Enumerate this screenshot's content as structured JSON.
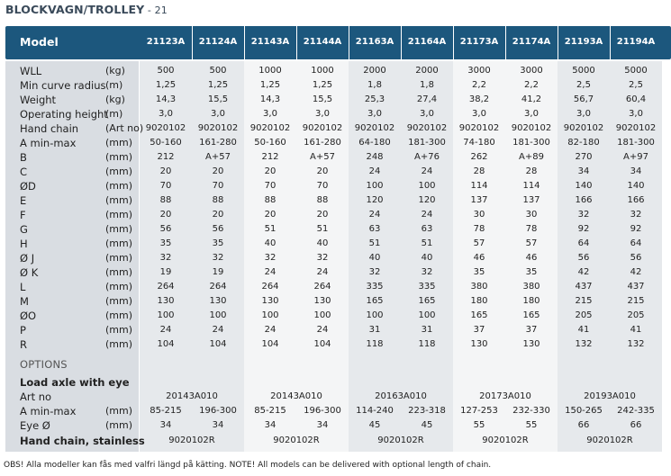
{
  "title": "BLOCKVAGN/TROLLEY",
  "page": "21",
  "header": {
    "model_label": "Model",
    "models": [
      "21123A",
      "21124A",
      "21143A",
      "21144A",
      "21163A",
      "21164A",
      "21173A",
      "21174A",
      "21193A",
      "21194A"
    ]
  },
  "rows": [
    {
      "label": "WLL",
      "unit": "(kg)",
      "values": [
        "500",
        "500",
        "1000",
        "1000",
        "2000",
        "2000",
        "3000",
        "3000",
        "5000",
        "5000"
      ]
    },
    {
      "label": "Min curve radius",
      "unit": "(m)",
      "values": [
        "1,25",
        "1,25",
        "1,25",
        "1,25",
        "1,8",
        "1,8",
        "2,2",
        "2,2",
        "2,5",
        "2,5"
      ]
    },
    {
      "label": "Weight",
      "unit": "(kg)",
      "values": [
        "14,3",
        "15,5",
        "14,3",
        "15,5",
        "25,3",
        "27,4",
        "38,2",
        "41,2",
        "56,7",
        "60,4"
      ]
    },
    {
      "label": "Operating height",
      "unit": "(m)",
      "values": [
        "3,0",
        "3,0",
        "3,0",
        "3,0",
        "3,0",
        "3,0",
        "3,0",
        "3,0",
        "3,0",
        "3,0"
      ]
    },
    {
      "label": "Hand chain",
      "unit": "(Art no)",
      "values": [
        "9020102",
        "9020102",
        "9020102",
        "9020102",
        "9020102",
        "9020102",
        "9020102",
        "9020102",
        "9020102",
        "9020102"
      ]
    },
    {
      "label": "A min-max",
      "unit": "(mm)",
      "values": [
        "50-160",
        "161-280",
        "50-160",
        "161-280",
        "64-180",
        "181-300",
        "74-180",
        "181-300",
        "82-180",
        "181-300"
      ]
    },
    {
      "label": "B",
      "unit": "(mm)",
      "values": [
        "212",
        "A+57",
        "212",
        "A+57",
        "248",
        "A+76",
        "262",
        "A+89",
        "270",
        "A+97"
      ]
    },
    {
      "label": "C",
      "unit": "(mm)",
      "values": [
        "20",
        "20",
        "20",
        "20",
        "24",
        "24",
        "28",
        "28",
        "34",
        "34"
      ]
    },
    {
      "label": "ØD",
      "unit": "(mm)",
      "values": [
        "70",
        "70",
        "70",
        "70",
        "100",
        "100",
        "114",
        "114",
        "140",
        "140"
      ]
    },
    {
      "label": "E",
      "unit": "(mm)",
      "values": [
        "88",
        "88",
        "88",
        "88",
        "120",
        "120",
        "137",
        "137",
        "166",
        "166"
      ]
    },
    {
      "label": "F",
      "unit": "(mm)",
      "values": [
        "20",
        "20",
        "20",
        "20",
        "24",
        "24",
        "30",
        "30",
        "32",
        "32"
      ]
    },
    {
      "label": "G",
      "unit": "(mm)",
      "values": [
        "56",
        "56",
        "51",
        "51",
        "63",
        "63",
        "78",
        "78",
        "92",
        "92"
      ]
    },
    {
      "label": "H",
      "unit": "(mm)",
      "values": [
        "35",
        "35",
        "40",
        "40",
        "51",
        "51",
        "57",
        "57",
        "64",
        "64"
      ]
    },
    {
      "label": "Ø J",
      "unit": "(mm)",
      "values": [
        "32",
        "32",
        "32",
        "32",
        "40",
        "40",
        "46",
        "46",
        "56",
        "56"
      ]
    },
    {
      "label": "Ø K",
      "unit": "(mm)",
      "values": [
        "19",
        "19",
        "24",
        "24",
        "32",
        "32",
        "35",
        "35",
        "42",
        "42"
      ]
    },
    {
      "label": "L",
      "unit": "(mm)",
      "values": [
        "264",
        "264",
        "264",
        "264",
        "335",
        "335",
        "380",
        "380",
        "437",
        "437"
      ]
    },
    {
      "label": "M",
      "unit": "(mm)",
      "values": [
        "130",
        "130",
        "130",
        "130",
        "165",
        "165",
        "180",
        "180",
        "215",
        "215"
      ]
    },
    {
      "label": "ØO",
      "unit": "(mm)",
      "values": [
        "100",
        "100",
        "100",
        "100",
        "100",
        "100",
        "165",
        "165",
        "205",
        "205"
      ]
    },
    {
      "label": "P",
      "unit": "(mm)",
      "values": [
        "24",
        "24",
        "24",
        "24",
        "31",
        "31",
        "37",
        "37",
        "41",
        "41"
      ]
    },
    {
      "label": "R",
      "unit": "(mm)",
      "values": [
        "104",
        "104",
        "104",
        "104",
        "118",
        "118",
        "130",
        "130",
        "132",
        "132"
      ]
    }
  ],
  "options": {
    "heading": "OPTIONS",
    "load_axle_label": "Load axle with eye",
    "art_no_label": "Art no",
    "art_no_values": [
      "20143A010",
      "20143A010",
      "20163A010",
      "20173A010",
      "20193A010"
    ],
    "a_minmax": {
      "label": "A min-max",
      "unit": "(mm)",
      "values": [
        "85-215",
        "196-300",
        "85-215",
        "196-300",
        "114-240",
        "223-318",
        "127-253",
        "232-330",
        "150-265",
        "242-335"
      ]
    },
    "eye": {
      "label": "Eye Ø",
      "unit": "(mm)",
      "values": [
        "34",
        "34",
        "34",
        "34",
        "45",
        "45",
        "55",
        "55",
        "66",
        "66"
      ]
    },
    "hand_chain_stainless_label": "Hand chain, stainless",
    "hand_chain_stainless_values": [
      "9020102R",
      "9020102R",
      "9020102R",
      "9020102R",
      "9020102R"
    ]
  },
  "footnote": "OBS! Alla modeller kan fås med valfri längd på kätting.  NOTE! All models can be delivered with optional length of chain."
}
